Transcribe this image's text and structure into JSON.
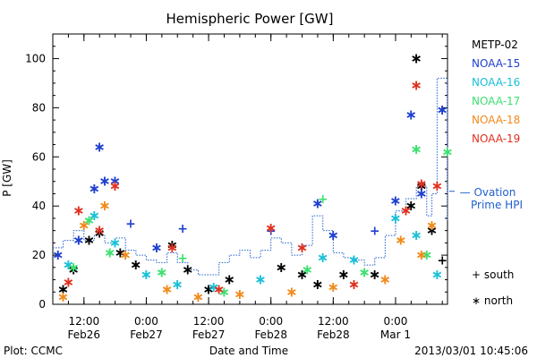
{
  "chart_data": {
    "type": "scatter",
    "title": "Hemispheric Power [GW]",
    "ylabel": "P [GW]",
    "xlabel": "Date and Time",
    "ylim": [
      0,
      110
    ],
    "xlim": [
      "2013-02-26 06:00",
      "2013-03-01 10:00"
    ],
    "y_ticks": [
      0,
      20,
      40,
      60,
      80,
      100
    ],
    "x_ticks": [
      {
        "time": "2013-02-26 12:00",
        "label1": "12:00",
        "label2": "Feb26"
      },
      {
        "time": "2013-02-27 00:00",
        "label1": "0:00",
        "label2": "Feb27"
      },
      {
        "time": "2013-02-27 12:00",
        "label1": "12:00",
        "label2": "Feb27"
      },
      {
        "time": "2013-02-28 00:00",
        "label1": "0:00",
        "label2": "Feb28"
      },
      {
        "time": "2013-02-28 12:00",
        "label1": "12:00",
        "label2": "Feb28"
      },
      {
        "time": "2013-03-01 00:00",
        "label1": "0:00",
        "label2": "Mar 1"
      }
    ],
    "grid": false,
    "legend": {
      "placement": "right",
      "markers": [
        {
          "symbol": "+",
          "label": "south"
        },
        {
          "symbol": "*",
          "label": "north"
        }
      ]
    },
    "series": [
      {
        "name": "METP-02",
        "color": "#000000",
        "points": [
          [
            "2013-02-26 08:00",
            6,
            "*"
          ],
          [
            "2013-02-26 10:00",
            14,
            "*"
          ],
          [
            "2013-02-26 13:00",
            26,
            "*"
          ],
          [
            "2013-02-26 15:00",
            29,
            "*"
          ],
          [
            "2013-02-26 19:00",
            21,
            "*"
          ],
          [
            "2013-02-26 22:00",
            16,
            "*"
          ],
          [
            "2013-02-27 05:00",
            24,
            "*"
          ],
          [
            "2013-02-27 08:00",
            14,
            "*"
          ],
          [
            "2013-02-27 12:00",
            6,
            "*"
          ],
          [
            "2013-02-27 16:00",
            10,
            "*"
          ],
          [
            "2013-02-28 02:00",
            15,
            "*"
          ],
          [
            "2013-02-28 06:00",
            12,
            "*"
          ],
          [
            "2013-02-28 09:00",
            8,
            "*"
          ],
          [
            "2013-02-28 14:00",
            12,
            "*"
          ],
          [
            "2013-02-28 20:00",
            12,
            "*"
          ],
          [
            "2013-03-01 03:00",
            40,
            "*"
          ],
          [
            "2013-03-01 04:00",
            100,
            "*"
          ],
          [
            "2013-03-01 05:00",
            48,
            "*"
          ],
          [
            "2013-03-01 07:00",
            30,
            "*"
          ],
          [
            "2013-03-01 09:00",
            18,
            "+"
          ]
        ]
      },
      {
        "name": "NOAA-15",
        "color": "#1f3fcf",
        "points": [
          [
            "2013-02-26 07:00",
            20,
            "*"
          ],
          [
            "2013-02-26 11:00",
            26,
            "*"
          ],
          [
            "2013-02-26 14:00",
            47,
            "*"
          ],
          [
            "2013-02-26 15:00",
            64,
            "*"
          ],
          [
            "2013-02-26 16:00",
            50,
            "*"
          ],
          [
            "2013-02-26 18:00",
            50,
            "*"
          ],
          [
            "2013-02-26 21:00",
            33,
            "+"
          ],
          [
            "2013-02-27 02:00",
            23,
            "*"
          ],
          [
            "2013-02-27 07:00",
            31,
            "+"
          ],
          [
            "2013-02-28 00:00",
            30,
            "+"
          ],
          [
            "2013-02-28 09:00",
            41,
            "*"
          ],
          [
            "2013-02-28 12:00",
            28,
            "*"
          ],
          [
            "2013-02-28 20:00",
            30,
            "+"
          ],
          [
            "2013-03-01 00:00",
            42,
            "*"
          ],
          [
            "2013-03-01 03:00",
            77,
            "*"
          ],
          [
            "2013-03-01 05:00",
            45,
            "*"
          ],
          [
            "2013-03-01 09:00",
            79,
            "*"
          ]
        ]
      },
      {
        "name": "NOAA-16",
        "color": "#19c0d8",
        "points": [
          [
            "2013-02-26 09:00",
            16,
            "*"
          ],
          [
            "2013-02-26 14:00",
            36,
            "*"
          ],
          [
            "2013-02-26 18:00",
            25,
            "*"
          ],
          [
            "2013-02-27 00:00",
            12,
            "*"
          ],
          [
            "2013-02-27 06:00",
            8,
            "*"
          ],
          [
            "2013-02-27 13:00",
            7,
            "*"
          ],
          [
            "2013-02-27 22:00",
            10,
            "*"
          ],
          [
            "2013-02-28 10:00",
            19,
            "*"
          ],
          [
            "2013-02-28 16:00",
            18,
            "*"
          ],
          [
            "2013-03-01 00:00",
            35,
            "*"
          ],
          [
            "2013-03-01 04:00",
            28,
            "*"
          ],
          [
            "2013-03-01 08:00",
            12,
            "*"
          ]
        ]
      },
      {
        "name": "NOAA-17",
        "color": "#3de070",
        "points": [
          [
            "2013-02-26 10:00",
            15,
            "*"
          ],
          [
            "2013-02-26 13:00",
            34,
            "*"
          ],
          [
            "2013-02-26 17:00",
            21,
            "*"
          ],
          [
            "2013-02-27 03:00",
            13,
            "*"
          ],
          [
            "2013-02-27 07:00",
            19,
            "+"
          ],
          [
            "2013-02-27 15:00",
            5,
            "*"
          ],
          [
            "2013-02-28 07:00",
            14,
            "*"
          ],
          [
            "2013-02-28 10:00",
            43,
            "+"
          ],
          [
            "2013-02-28 18:00",
            13,
            "*"
          ],
          [
            "2013-03-01 04:00",
            63,
            "*"
          ],
          [
            "2013-03-01 06:00",
            20,
            "*"
          ],
          [
            "2013-03-01 10:00",
            62,
            "*"
          ]
        ]
      },
      {
        "name": "NOAA-18",
        "color": "#f08a1c",
        "points": [
          [
            "2013-02-26 08:00",
            3,
            "*"
          ],
          [
            "2013-02-26 12:00",
            32,
            "*"
          ],
          [
            "2013-02-26 16:00",
            40,
            "*"
          ],
          [
            "2013-02-26 20:00",
            20,
            "*"
          ],
          [
            "2013-02-27 04:00",
            6,
            "*"
          ],
          [
            "2013-02-27 10:00",
            3,
            "*"
          ],
          [
            "2013-02-27 18:00",
            4,
            "*"
          ],
          [
            "2013-02-28 04:00",
            5,
            "*"
          ],
          [
            "2013-02-28 12:00",
            7,
            "*"
          ],
          [
            "2013-02-28 22:00",
            10,
            "*"
          ],
          [
            "2013-03-01 01:00",
            26,
            "*"
          ],
          [
            "2013-03-01 05:00",
            20,
            "*"
          ],
          [
            "2013-03-01 07:00",
            32,
            "*"
          ]
        ]
      },
      {
        "name": "NOAA-19",
        "color": "#e0301e",
        "points": [
          [
            "2013-02-26 09:00",
            9,
            "*"
          ],
          [
            "2013-02-26 11:00",
            38,
            "*"
          ],
          [
            "2013-02-26 15:00",
            30,
            "*"
          ],
          [
            "2013-02-26 18:00",
            48,
            "*"
          ],
          [
            "2013-02-27 05:00",
            23,
            "*"
          ],
          [
            "2013-02-27 14:00",
            6,
            "*"
          ],
          [
            "2013-02-28 00:00",
            31,
            "*"
          ],
          [
            "2013-02-28 06:00",
            23,
            "*"
          ],
          [
            "2013-02-28 16:00",
            8,
            "*"
          ],
          [
            "2013-03-01 02:00",
            38,
            "*"
          ],
          [
            "2013-03-01 04:00",
            89,
            "*"
          ],
          [
            "2013-03-01 05:00",
            49,
            "*"
          ],
          [
            "2013-03-01 08:00",
            48,
            "*"
          ]
        ]
      }
    ],
    "ovation_line": {
      "label1": "— Ovation",
      "label2": "Prime HPI",
      "color": "#1f5fcf",
      "points": [
        [
          "2013-02-26 06:00",
          23
        ],
        [
          "2013-02-26 08:00",
          26
        ],
        [
          "2013-02-26 10:00",
          30
        ],
        [
          "2013-02-26 12:00",
          26
        ],
        [
          "2013-02-26 14:00",
          28
        ],
        [
          "2013-02-26 16:00",
          25
        ],
        [
          "2013-02-26 18:00",
          27
        ],
        [
          "2013-02-26 20:00",
          22
        ],
        [
          "2013-02-26 22:00",
          20
        ],
        [
          "2013-02-27 00:00",
          18
        ],
        [
          "2013-02-27 02:00",
          17
        ],
        [
          "2013-02-27 04:00",
          21
        ],
        [
          "2013-02-27 06:00",
          17
        ],
        [
          "2013-02-27 08:00",
          14
        ],
        [
          "2013-02-27 10:00",
          12
        ],
        [
          "2013-02-27 12:00",
          12
        ],
        [
          "2013-02-27 14:00",
          17
        ],
        [
          "2013-02-27 16:00",
          20
        ],
        [
          "2013-02-27 18:00",
          22
        ],
        [
          "2013-02-27 20:00",
          19
        ],
        [
          "2013-02-27 22:00",
          22
        ],
        [
          "2013-02-28 00:00",
          27
        ],
        [
          "2013-02-28 02:00",
          25
        ],
        [
          "2013-02-28 04:00",
          20
        ],
        [
          "2013-02-28 06:00",
          24
        ],
        [
          "2013-02-28 08:00",
          36
        ],
        [
          "2013-02-28 10:00",
          30
        ],
        [
          "2013-02-28 12:00",
          21
        ],
        [
          "2013-02-28 14:00",
          19
        ],
        [
          "2013-02-28 16:00",
          18
        ],
        [
          "2013-02-28 18:00",
          16
        ],
        [
          "2013-02-28 20:00",
          19
        ],
        [
          "2013-02-28 22:00",
          28
        ],
        [
          "2013-03-01 00:00",
          38
        ],
        [
          "2013-03-01 02:00",
          43
        ],
        [
          "2013-03-01 04:00",
          48
        ],
        [
          "2013-03-01 06:00",
          36
        ],
        [
          "2013-03-01 07:00",
          45
        ],
        [
          "2013-03-01 08:00",
          92
        ],
        [
          "2013-03-01 09:00",
          92
        ],
        [
          "2013-03-01 10:00",
          34
        ]
      ]
    }
  },
  "footer": {
    "left": "Plot: CCMC",
    "center": "Date and Time",
    "right": "2013/03/01  10:45:06"
  }
}
